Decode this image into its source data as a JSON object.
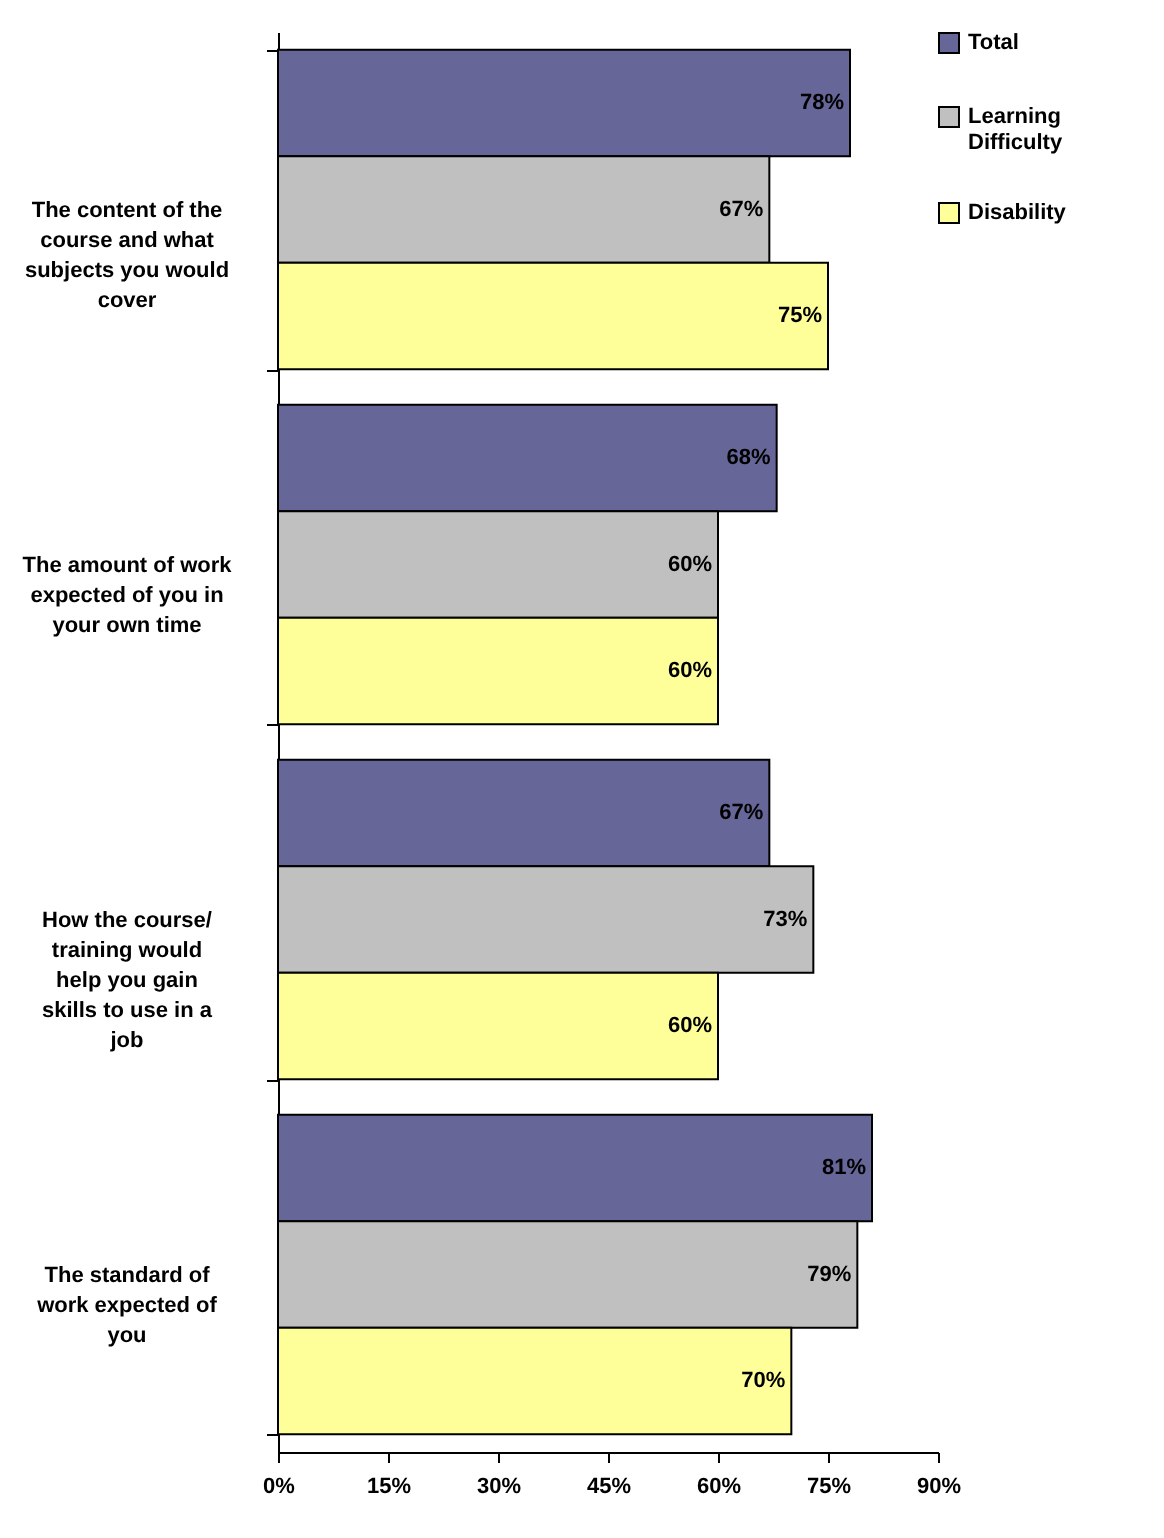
{
  "chart_data": {
    "type": "bar",
    "orientation": "horizontal",
    "categories": [
      "The content of the course and what subjects you would cover",
      "The amount of work expected of you in your own time",
      "How the course/ training would help you gain skills to use in a job",
      "The standard of work expected of you"
    ],
    "series": [
      {
        "name": "Total",
        "color": "#666699",
        "values": [
          78,
          68,
          67,
          81
        ],
        "value_labels": [
          "78%",
          "68%",
          "67%",
          "81%"
        ]
      },
      {
        "name": "Learning Difficulty",
        "color": "#c0c0c0",
        "values": [
          67,
          60,
          73,
          79
        ],
        "value_labels": [
          "67%",
          "60%",
          "73%",
          "79%"
        ]
      },
      {
        "name": "Disability",
        "color": "#ffff99",
        "values": [
          75,
          60,
          60,
          70
        ],
        "value_labels": [
          "75%",
          "60%",
          "60%",
          "70%"
        ]
      }
    ],
    "xlim": [
      0,
      90
    ],
    "xticks": [
      {
        "value": 0,
        "label": "0%"
      },
      {
        "value": 15,
        "label": "15%"
      },
      {
        "value": 30,
        "label": "30%"
      },
      {
        "value": 45,
        "label": "45%"
      },
      {
        "value": 60,
        "label": "60%"
      },
      {
        "value": 75,
        "label": "75%"
      },
      {
        "value": 90,
        "label": "90%"
      }
    ],
    "grid": false,
    "legend": "right"
  }
}
